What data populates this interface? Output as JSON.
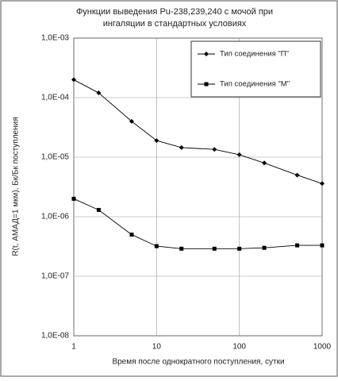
{
  "chart_data": {
    "type": "line",
    "title": [
      "Функции выведения Pu-238,239,240 с мочой при",
      "ингаляции в стандартных условиях"
    ],
    "x_label": "Время после однократного поступления, сутки",
    "y_label": "R(t, АМАД=1 мкм), Бк/Бк поступления",
    "x": [
      1,
      2,
      5,
      10,
      20,
      50,
      100,
      200,
      500,
      1000
    ],
    "series": [
      {
        "name": "Тип соединения  \"П\"",
        "color": "#000000",
        "marker": "diamond",
        "values": [
          0.0002,
          0.00012,
          4e-05,
          1.9e-05,
          1.45e-05,
          1.35e-05,
          1.1e-05,
          8e-06,
          5e-06,
          3.6e-06
        ]
      },
      {
        "name": "Тип соединения  \"М\"",
        "color": "#000000",
        "marker": "square",
        "values": [
          2e-06,
          1.3e-06,
          5e-07,
          3.2e-07,
          2.9e-07,
          2.9e-07,
          2.9e-07,
          3e-07,
          3.3e-07,
          3.3e-07
        ]
      }
    ],
    "xlim": [
      1,
      1000
    ],
    "xticks": [
      1,
      10,
      100,
      1000
    ],
    "xscale": "log",
    "ylim": [
      1e-08,
      0.001
    ],
    "yscale": "log",
    "yticks": [
      {
        "value": 1e-08,
        "label": "1,0E-08"
      },
      {
        "value": 1e-07,
        "label": "1,0E-07"
      },
      {
        "value": 1e-06,
        "label": "1,0E-06"
      },
      {
        "value": 1e-05,
        "label": "1,0E-05"
      },
      {
        "value": 0.0001,
        "label": "1,0E-04"
      },
      {
        "value": 0.001,
        "label": "1,0E-03"
      }
    ],
    "grid": true,
    "legend": "top-right"
  }
}
